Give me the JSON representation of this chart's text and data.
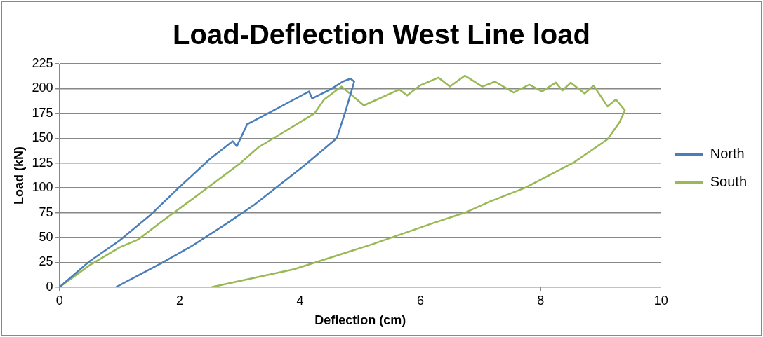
{
  "chart_data": {
    "type": "line",
    "title": "Load-Deflection West Line load",
    "xlabel": "Deflection (cm)",
    "ylabel": "Load (kN)",
    "xlim": [
      0,
      10
    ],
    "xticks": [
      0,
      2,
      4,
      6,
      8,
      10
    ],
    "ylim": [
      0,
      225
    ],
    "yticks": [
      0,
      25,
      50,
      75,
      100,
      125,
      150,
      175,
      200,
      225
    ],
    "grid": "y",
    "legend": "right",
    "marker": "none",
    "line_style": "solid",
    "series": [
      {
        "name": "North",
        "color": "#4a7ebb",
        "x": [
          0,
          0.5,
          1.0,
          1.5,
          2.0,
          2.5,
          2.88,
          2.95,
          3.12,
          3.5,
          3.9,
          4.15,
          4.2,
          4.5,
          4.71,
          4.84,
          4.9,
          4.76,
          4.61,
          4.06,
          3.24,
          2.78,
          2.19,
          1.69,
          0.94
        ],
        "values": [
          0,
          26,
          47,
          72,
          101,
          129,
          147,
          142,
          164,
          176,
          189,
          197,
          190,
          199,
          207,
          210,
          207,
          178,
          150,
          122,
          83,
          64,
          41,
          24,
          0
        ]
      },
      {
        "name": "South",
        "color": "#98b954",
        "x": [
          0,
          0.5,
          1.0,
          1.31,
          1.7,
          2.24,
          2.99,
          3.31,
          3.56,
          4.24,
          4.4,
          4.69,
          5.06,
          5.65,
          5.78,
          5.99,
          6.3,
          6.49,
          6.74,
          7.03,
          7.24,
          7.55,
          7.81,
          8.02,
          8.25,
          8.36,
          8.5,
          8.73,
          8.88,
          9.11,
          9.25,
          9.4,
          9.31,
          9.11,
          8.56,
          7.74,
          7.15,
          6.74,
          6.19,
          5.19,
          3.9,
          2.53
        ],
        "values": [
          0,
          22,
          40,
          48,
          66,
          90,
          124,
          141,
          150,
          175,
          189,
          202,
          183,
          199,
          193,
          203,
          211,
          202,
          213,
          202,
          207,
          196,
          204,
          197,
          206,
          198,
          206,
          195,
          203,
          182,
          189,
          178,
          166,
          149,
          126,
          100,
          86,
          75,
          64,
          43,
          18,
          0
        ]
      }
    ]
  }
}
